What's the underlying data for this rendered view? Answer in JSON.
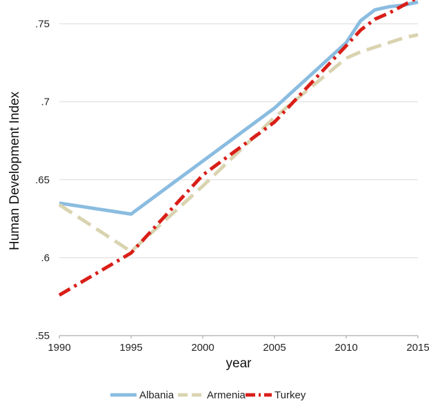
{
  "chart_data": {
    "type": "line",
    "title": "",
    "xlabel": "year",
    "ylabel": "Human Development Index",
    "x_ticks": [
      "1990",
      "1995",
      "2000",
      "2005",
      "2010",
      "2015"
    ],
    "y_ticks": [
      ".55",
      ".6",
      ".65",
      ".7",
      ".75"
    ],
    "xlim": [
      1990,
      2015
    ],
    "ylim": [
      0.55,
      0.76
    ],
    "grid": "horizontal",
    "legend_position": "bottom",
    "series": [
      {
        "name": "Albania",
        "color": "#8ABCE0",
        "style": "solid",
        "x": [
          1990,
          1995,
          2000,
          2005,
          2010,
          2011,
          2012,
          2013,
          2014,
          2015
        ],
        "y": [
          0.635,
          0.628,
          0.662,
          0.696,
          0.738,
          0.752,
          0.759,
          0.761,
          0.762,
          0.764
        ]
      },
      {
        "name": "Armenia",
        "color": "#D9D3B0",
        "style": "dashed",
        "x": [
          1990,
          1995,
          2000,
          2005,
          2010,
          2011,
          2012,
          2013,
          2014,
          2015
        ],
        "y": [
          0.634,
          0.604,
          0.646,
          0.69,
          0.728,
          0.732,
          0.735,
          0.738,
          0.741,
          0.743
        ]
      },
      {
        "name": "Turkey",
        "color": "#D91E18",
        "style": "dashdot",
        "x": [
          1990,
          1995,
          2000,
          2005,
          2010,
          2011,
          2012,
          2013,
          2014,
          2015
        ],
        "y": [
          0.576,
          0.603,
          0.653,
          0.687,
          0.736,
          0.746,
          0.753,
          0.757,
          0.762,
          0.767
        ]
      }
    ]
  }
}
